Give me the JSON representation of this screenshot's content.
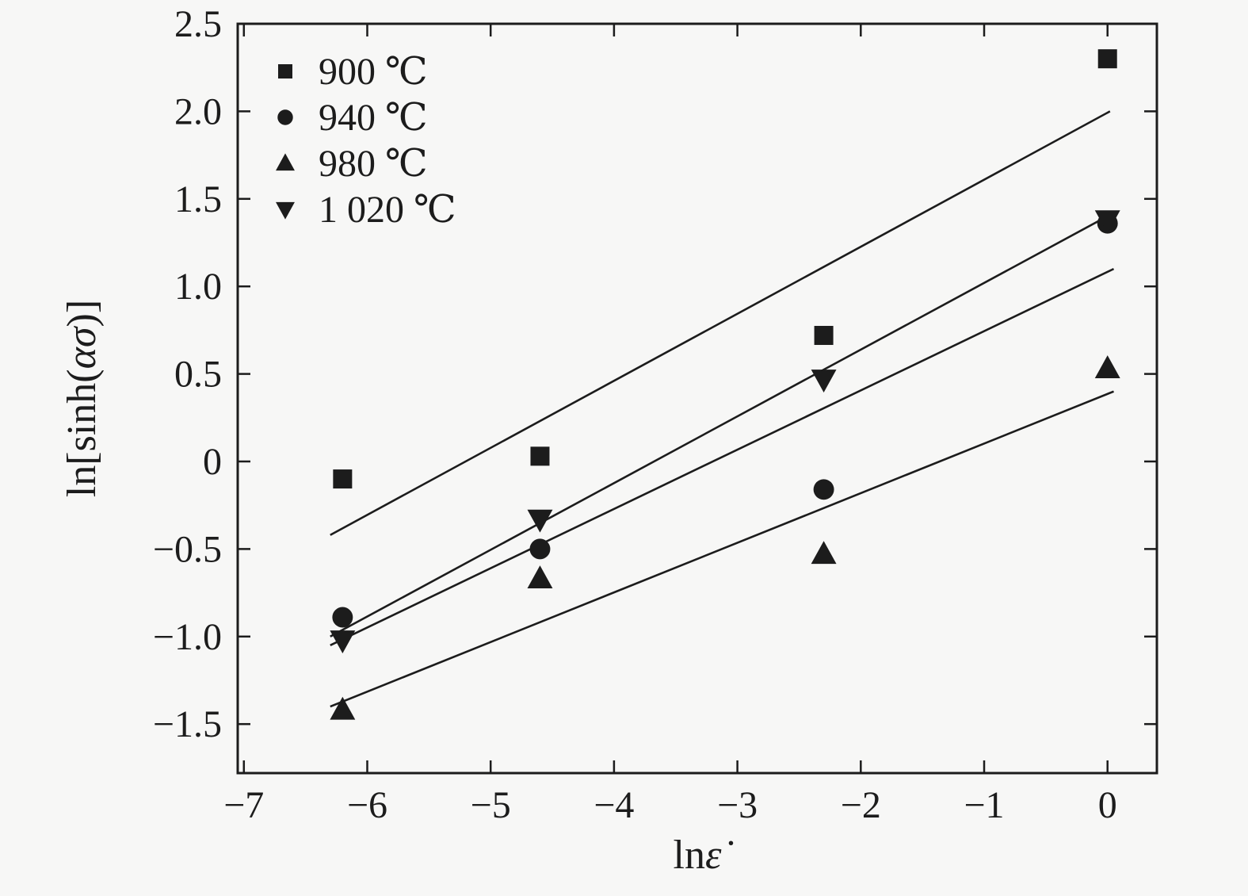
{
  "figure": {
    "background": "#f7f7f6",
    "ink_color": "#1c1c1c"
  },
  "chart_data": {
    "type": "scatter",
    "title": "",
    "xlabel_parts": [
      {
        "t": "ln",
        "italic": false
      },
      {
        "t": "ε̇",
        "italic": true
      }
    ],
    "ylabel_parts": [
      {
        "t": "ln[sinh(",
        "italic": false
      },
      {
        "t": "ασ",
        "italic": true
      },
      {
        "t": ")]",
        "italic": false
      }
    ],
    "xlim": [
      -7.05,
      0.4
    ],
    "ylim": [
      -1.78,
      2.5
    ],
    "x_ticks": [
      -7,
      -6,
      -5,
      -4,
      -3,
      -2,
      -1,
      0
    ],
    "x_tick_labels": [
      "−7",
      "−6",
      "−5",
      "−4",
      "−3",
      "−2",
      "−1",
      "0"
    ],
    "y_ticks": [
      -1.5,
      -1.0,
      -0.5,
      0,
      0.5,
      1.0,
      1.5,
      2.0,
      2.5
    ],
    "y_tick_labels": [
      "−1.5",
      "−1.0",
      "−0.5",
      "0",
      "0.5",
      "1.0",
      "1.5",
      "2.0",
      "2.5"
    ],
    "grid": false,
    "legend_position": "top-left",
    "legend_items": [
      "900 ℃",
      "940 ℃",
      "980 ℃",
      "1 020 ℃"
    ],
    "series": [
      {
        "name": "900 ℃",
        "marker": "square",
        "points": [
          [
            -6.2,
            -0.1
          ],
          [
            -4.6,
            0.03
          ],
          [
            -2.3,
            0.72
          ],
          [
            0,
            2.3
          ]
        ],
        "fit_line": [
          [
            -6.3,
            -0.42
          ],
          [
            0.02,
            2.0
          ]
        ]
      },
      {
        "name": "940 ℃",
        "marker": "circle",
        "points": [
          [
            -6.2,
            -0.89
          ],
          [
            -4.6,
            -0.5
          ],
          [
            -2.3,
            -0.16
          ],
          [
            0,
            1.36
          ]
        ],
        "fit_line": [
          [
            -6.3,
            -1.05
          ],
          [
            0.05,
            1.1
          ]
        ]
      },
      {
        "name": "980 ℃",
        "marker": "triangle-up",
        "points": [
          [
            -6.2,
            -1.42
          ],
          [
            -4.6,
            -0.67
          ],
          [
            -2.3,
            -0.53
          ],
          [
            0,
            0.53
          ]
        ],
        "fit_line": [
          [
            -6.3,
            -1.4
          ],
          [
            0.05,
            0.4
          ]
        ]
      },
      {
        "name": "1 020 ℃",
        "marker": "triangle-down",
        "points": [
          [
            -6.2,
            -1.02
          ],
          [
            -4.6,
            -0.33
          ],
          [
            -2.3,
            0.47
          ],
          [
            0,
            1.38
          ]
        ],
        "fit_line": [
          [
            -6.3,
            -1.0
          ],
          [
            0.05,
            1.42
          ]
        ]
      }
    ]
  }
}
